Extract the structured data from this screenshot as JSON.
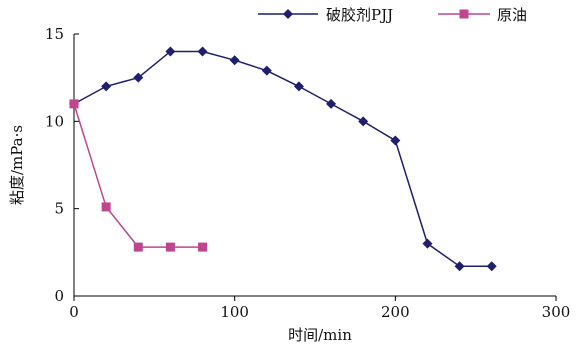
{
  "chart_data": {
    "type": "line",
    "title": "",
    "xlabel": "时间/min",
    "ylabel": "粘度/mPa·s",
    "xlim": [
      0,
      300
    ],
    "ylim": [
      0,
      15
    ],
    "xticks": [
      "0",
      "100",
      "200",
      "300"
    ],
    "yticks": [
      "0",
      "5",
      "10",
      "15"
    ],
    "grid": false,
    "legend_position": "top-right",
    "series": [
      {
        "name": "破胶剂PJJ",
        "color": "#1f1f6e",
        "marker": "diamond",
        "x": [
          0,
          20,
          40,
          60,
          80,
          100,
          120,
          140,
          160,
          180,
          200,
          220,
          240,
          260
        ],
        "y": [
          11.0,
          12.0,
          12.5,
          14.0,
          14.0,
          13.5,
          12.9,
          12.0,
          11.0,
          10.0,
          8.9,
          3.0,
          1.7,
          1.7
        ]
      },
      {
        "name": "原油",
        "color": "#c0458f",
        "marker": "square",
        "x": [
          0,
          20,
          40,
          60,
          80
        ],
        "y": [
          11.0,
          5.1,
          2.8,
          2.8,
          2.8
        ]
      }
    ]
  }
}
